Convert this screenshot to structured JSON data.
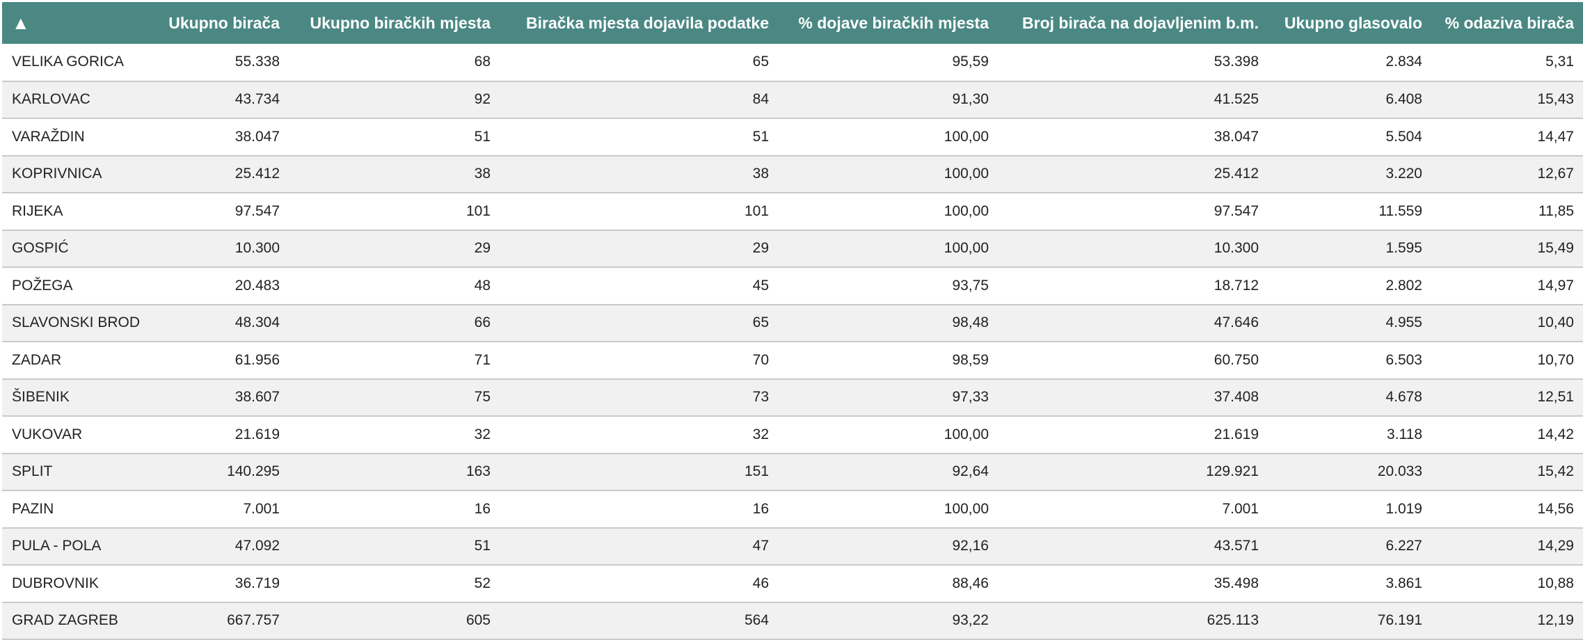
{
  "header": {
    "sort_indicator": "▲",
    "columns": [
      "Ukupno birača",
      "Ukupno biračkih mjesta",
      "Biračka mjesta dojavila podatke",
      "% dojave biračkih mjesta",
      "Broj birača na dojavljenim b.m.",
      "Ukupno glasovalo",
      "% odaziva birača"
    ]
  },
  "rows": [
    [
      "VELIKA GORICA",
      "55.338",
      "68",
      "65",
      "95,59",
      "53.398",
      "2.834",
      "5,31"
    ],
    [
      "KARLOVAC",
      "43.734",
      "92",
      "84",
      "91,30",
      "41.525",
      "6.408",
      "15,43"
    ],
    [
      "VARAŽDIN",
      "38.047",
      "51",
      "51",
      "100,00",
      "38.047",
      "5.504",
      "14,47"
    ],
    [
      "KOPRIVNICA",
      "25.412",
      "38",
      "38",
      "100,00",
      "25.412",
      "3.220",
      "12,67"
    ],
    [
      "RIJEKA",
      "97.547",
      "101",
      "101",
      "100,00",
      "97.547",
      "11.559",
      "11,85"
    ],
    [
      "GOSPIĆ",
      "10.300",
      "29",
      "29",
      "100,00",
      "10.300",
      "1.595",
      "15,49"
    ],
    [
      "POŽEGA",
      "20.483",
      "48",
      "45",
      "93,75",
      "18.712",
      "2.802",
      "14,97"
    ],
    [
      "SLAVONSKI BROD",
      "48.304",
      "66",
      "65",
      "98,48",
      "47.646",
      "4.955",
      "10,40"
    ],
    [
      "ZADAR",
      "61.956",
      "71",
      "70",
      "98,59",
      "60.750",
      "6.503",
      "10,70"
    ],
    [
      "ŠIBENIK",
      "38.607",
      "75",
      "73",
      "97,33",
      "37.408",
      "4.678",
      "12,51"
    ],
    [
      "VUKOVAR",
      "21.619",
      "32",
      "32",
      "100,00",
      "21.619",
      "3.118",
      "14,42"
    ],
    [
      "SPLIT",
      "140.295",
      "163",
      "151",
      "92,64",
      "129.921",
      "20.033",
      "15,42"
    ],
    [
      "PAZIN",
      "7.001",
      "16",
      "16",
      "100,00",
      "7.001",
      "1.019",
      "14,56"
    ],
    [
      "PULA - POLA",
      "47.092",
      "51",
      "47",
      "92,16",
      "43.571",
      "6.227",
      "14,29"
    ],
    [
      "DUBROVNIK",
      "36.719",
      "52",
      "46",
      "88,46",
      "35.498",
      "3.861",
      "10,88"
    ],
    [
      "GRAD ZAGREB",
      "667.757",
      "605",
      "564",
      "93,22",
      "625.113",
      "76.191",
      "12,19"
    ]
  ]
}
